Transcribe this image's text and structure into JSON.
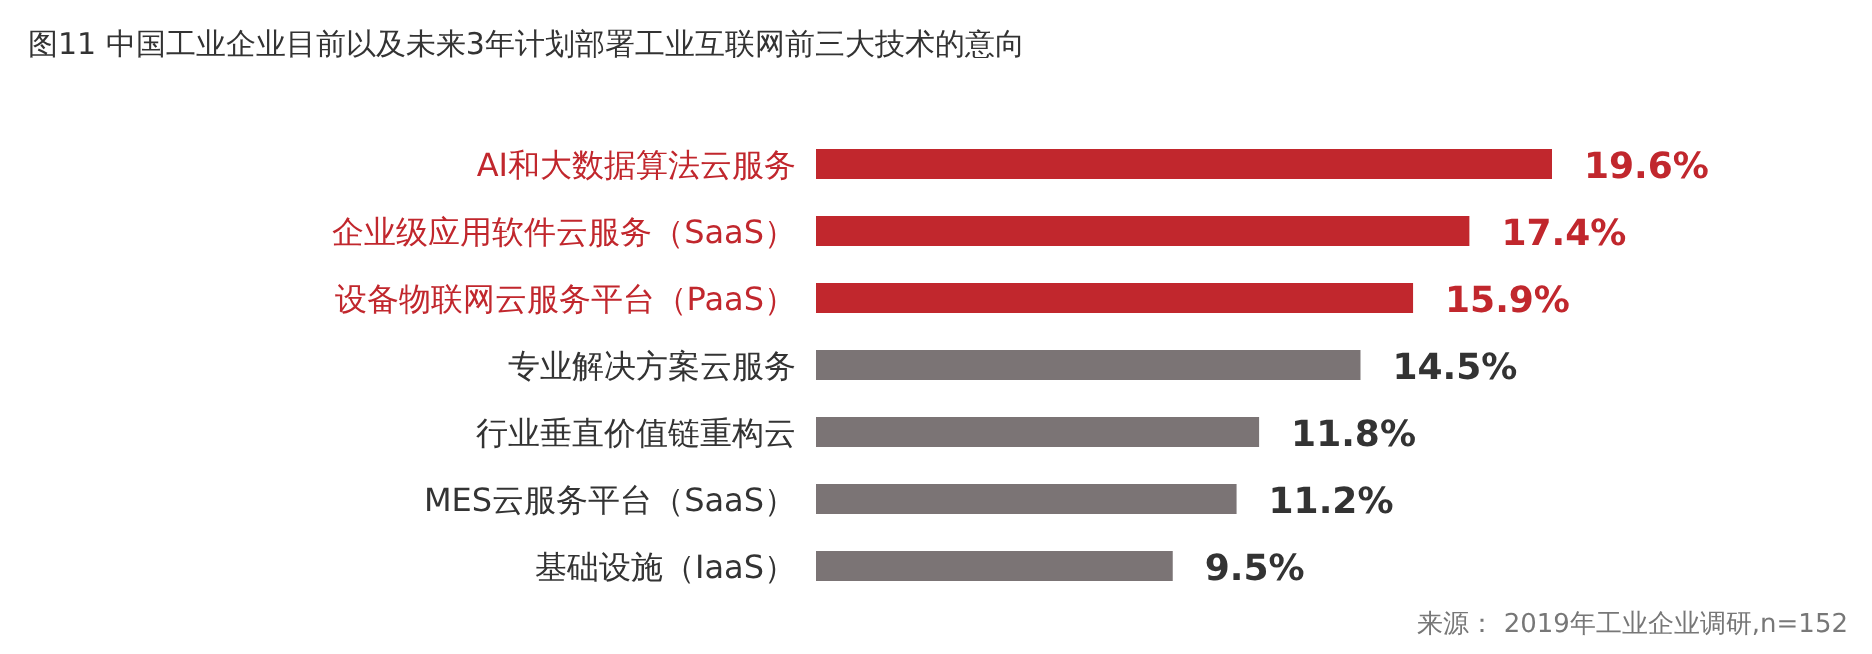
{
  "chart_data": {
    "type": "bar",
    "orientation": "horizontal",
    "title": "图11 中国工业企业目前以及未来3年计划部署工业互联网前三大技术的意向",
    "categories": [
      "AI和大数据算法云服务",
      "企业级应用软件云服务（SaaS）",
      "设备物联网云服务平台（PaaS）",
      "专业解决方案云服务",
      "行业垂直价值链重构云",
      "MES云服务平台（SaaS）",
      "基础设施（IaaS）"
    ],
    "values": [
      19.6,
      17.4,
      15.9,
      14.5,
      11.8,
      11.2,
      9.5
    ],
    "colors": [
      "#c1272d",
      "#c1272d",
      "#c1272d",
      "#7b7475",
      "#7b7475",
      "#7b7475",
      "#7b7475"
    ],
    "value_labels": [
      "19.6%",
      "17.4%",
      "15.9%",
      "14.5%",
      "11.8%",
      "11.2%",
      "9.5%"
    ],
    "annotations": [
      "来源： 2019年工业企业调研,n=152"
    ]
  }
}
